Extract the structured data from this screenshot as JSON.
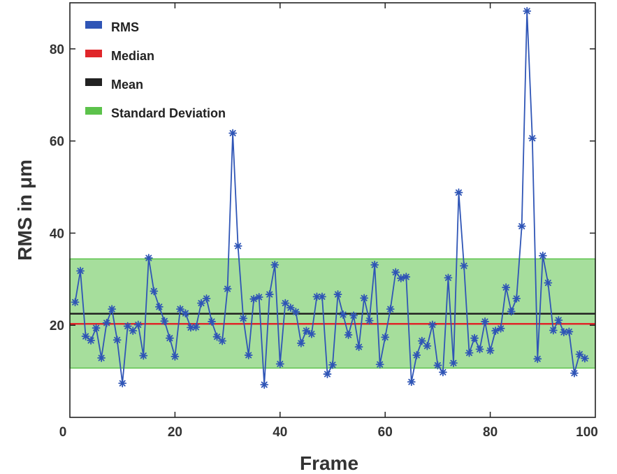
{
  "chart_data": {
    "type": "line",
    "title": "",
    "xlabel": "Frame",
    "ylabel": "RMS in μm",
    "xlim": [
      0,
      100
    ],
    "ylim": [
      0,
      90
    ],
    "x_ticks": [
      0,
      20,
      40,
      60,
      80,
      100
    ],
    "y_ticks": [
      20,
      40,
      60,
      80
    ],
    "x_tick_labels": [
      "0",
      "20",
      "40",
      "60",
      "80",
      "100"
    ],
    "y_tick_labels": [
      "20",
      "40",
      "60",
      "80"
    ],
    "grid": false,
    "legend_position": "top-left",
    "legend": [
      {
        "label": "RMS",
        "color": "#2f55b6"
      },
      {
        "label": "Median",
        "color": "#e0262a"
      },
      {
        "label": "Mean",
        "color": "#222222"
      },
      {
        "label": "Standard Deviation",
        "color": "#5cc24b"
      }
    ],
    "series": [
      {
        "name": "RMS",
        "color": "#2f55b6",
        "marker": "asterisk",
        "x": [
          1,
          2,
          3,
          4,
          5,
          6,
          7,
          8,
          9,
          10,
          11,
          12,
          13,
          14,
          15,
          16,
          17,
          18,
          19,
          20,
          21,
          22,
          23,
          24,
          25,
          26,
          27,
          28,
          29,
          30,
          31,
          32,
          33,
          34,
          35,
          36,
          37,
          38,
          39,
          40,
          41,
          42,
          43,
          44,
          45,
          46,
          47,
          48,
          49,
          50,
          51,
          52,
          53,
          54,
          55,
          56,
          57,
          58,
          59,
          60,
          61,
          62,
          63,
          64,
          65,
          66,
          67,
          68,
          69,
          70,
          71,
          72,
          73,
          74,
          75,
          76,
          77,
          78,
          79,
          80,
          81,
          82,
          83,
          84,
          85,
          86,
          87,
          88,
          89,
          90,
          91,
          92,
          93,
          94,
          95,
          96,
          97,
          98
        ],
        "y": [
          25,
          31.8,
          17.6,
          16.7,
          19.4,
          12.9,
          20.5,
          23.5,
          16.8,
          7.4,
          19.8,
          18.8,
          20.1,
          13.4,
          34.6,
          27.4,
          24,
          20.9,
          17.2,
          13.2,
          23.5,
          22.6,
          19.5,
          19.6,
          24.8,
          25.8,
          20.8,
          17.5,
          16.6,
          27.9,
          61.7,
          37.2,
          21.5,
          13.5,
          25.7,
          26.1,
          7.1,
          26.7,
          33.1,
          11.6,
          24.8,
          23.8,
          22.9,
          16.1,
          18.8,
          18.1,
          26.2,
          26.2,
          9.4,
          11.4,
          26.7,
          22.3,
          17.9,
          22.1,
          15.3,
          25.9,
          21,
          33.1,
          11.5,
          17.4,
          23.5,
          31.5,
          30.2,
          30.5,
          7.7,
          13.5,
          16.6,
          15.5,
          20.1,
          11.3,
          9.8,
          30.3,
          11.8,
          48.8,
          32.9,
          14,
          17.2,
          14.8,
          20.8,
          14.5,
          18.8,
          19.3,
          28.2,
          23,
          25.8,
          41.5,
          88.2,
          60.6,
          12.7,
          35.1,
          29.2,
          18.9,
          21.1,
          18.5,
          18.6,
          9.6,
          13.7,
          12.8
        ]
      },
      {
        "name": "Median",
        "color": "#e0262a",
        "y_constant": 20.3
      },
      {
        "name": "Mean",
        "color": "#222222",
        "y_constant": 22.5
      }
    ],
    "std_band": {
      "name": "Standard Deviation",
      "color": "#5cc24b",
      "y_range": [
        10.7,
        34.4
      ]
    }
  }
}
